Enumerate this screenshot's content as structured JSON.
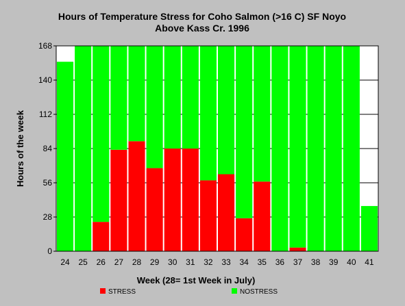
{
  "chart_data": {
    "type": "bar",
    "stacked": true,
    "title": "Hours of Temperature Stress for Coho Salmon (>16 C) SF Noyo",
    "subtitle": "Above Kass Cr. 1996",
    "xlabel": "Week (28= 1st Week in July)",
    "ylabel": "Hours of the week",
    "ylim": [
      0,
      168
    ],
    "yticks": [
      0,
      28,
      56,
      84,
      112,
      140,
      168
    ],
    "grid": true,
    "legend_position": "bottom",
    "categories": [
      "24",
      "25",
      "26",
      "27",
      "28",
      "29",
      "30",
      "31",
      "32",
      "33",
      "34",
      "35",
      "36",
      "37",
      "38",
      "39",
      "40",
      "41"
    ],
    "series": [
      {
        "name": "STRESS",
        "color": "#ff0000",
        "values": [
          0,
          0,
          24,
          83,
          90,
          68,
          84,
          84,
          58,
          63,
          27,
          57,
          0,
          3,
          0,
          0,
          0,
          0
        ]
      },
      {
        "name": "NOSTRESS",
        "color": "#00ff00",
        "values": [
          155,
          168,
          144,
          85,
          78,
          100,
          84,
          84,
          110,
          105,
          141,
          111,
          168,
          165,
          168,
          168,
          168,
          37
        ]
      }
    ]
  }
}
